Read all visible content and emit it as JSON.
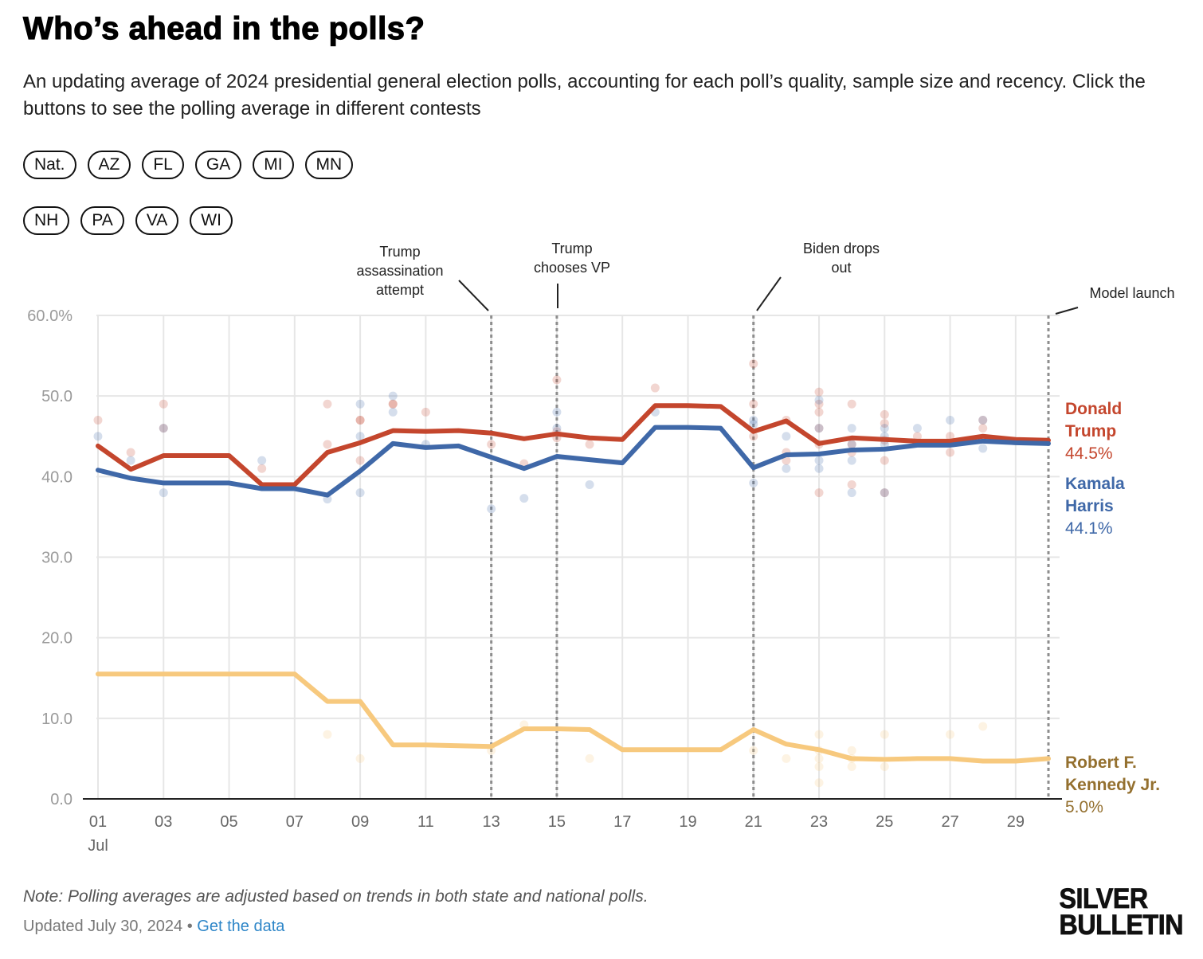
{
  "header": {
    "title": "Who’s ahead in the polls?",
    "subtitle": "An updating average of 2024 presidential general election polls, accounting for each poll’s quality, sample size and recency. Click the buttons to see the polling average in different contests"
  },
  "contest_buttons": {
    "row1": [
      "Nat.",
      "AZ",
      "FL",
      "GA",
      "MI",
      "MN"
    ],
    "row2": [
      "NH",
      "PA",
      "VA",
      "WI"
    ]
  },
  "footer": {
    "note": "Note: Polling averages are adjusted based on trends in both state and national polls.",
    "updated": "Updated July 30, 2024",
    "separator": "•",
    "data_link": "Get the data",
    "logo_line1": "SILVER",
    "logo_line2": "BULLETIN"
  },
  "chart_data": {
    "type": "line",
    "title": "Who’s ahead in the polls?",
    "xlabel": "",
    "ylabel": "",
    "x": [
      1,
      2,
      3,
      4,
      5,
      6,
      7,
      8,
      9,
      10,
      11,
      12,
      13,
      14,
      15,
      16,
      17,
      18,
      19,
      20,
      21,
      22,
      23,
      24,
      25,
      26,
      27,
      28,
      29,
      30
    ],
    "x_ticks": [
      "01",
      "03",
      "05",
      "07",
      "09",
      "11",
      "13",
      "15",
      "17",
      "19",
      "21",
      "23",
      "25",
      "27",
      "29"
    ],
    "x_tick_values": [
      1,
      3,
      5,
      7,
      9,
      11,
      13,
      15,
      17,
      19,
      21,
      23,
      25,
      27,
      29
    ],
    "x_month_label": "Jul",
    "xlim": [
      1,
      30
    ],
    "y_ticks": [
      "60.0%",
      "50.0",
      "40.0",
      "30.0",
      "20.0",
      "10.0",
      "0.0"
    ],
    "y_tick_values": [
      60,
      50,
      40,
      30,
      20,
      10,
      0
    ],
    "ylim": [
      0,
      60
    ],
    "grid": true,
    "series": [
      {
        "name": "Donald Trump",
        "label_line1": "Donald",
        "label_line2": "Trump",
        "final_label": "44.5%",
        "color": "#c4462d",
        "label_color": "#c4462d",
        "values": [
          43.8,
          40.9,
          42.6,
          42.6,
          42.6,
          39.0,
          39.0,
          43.0,
          44.2,
          45.7,
          45.6,
          45.7,
          45.4,
          44.7,
          45.3,
          44.8,
          44.6,
          48.8,
          48.8,
          48.7,
          45.6,
          46.9,
          44.1,
          44.8,
          44.6,
          44.4,
          44.4,
          45.0,
          44.6,
          44.5
        ],
        "polls": [
          [
            1,
            47
          ],
          [
            2,
            43
          ],
          [
            3,
            49
          ],
          [
            3,
            46
          ],
          [
            6,
            41
          ],
          [
            8,
            49
          ],
          [
            8,
            44
          ],
          [
            9,
            47
          ],
          [
            9,
            47
          ],
          [
            9,
            42
          ],
          [
            10,
            49
          ],
          [
            10,
            49
          ],
          [
            11,
            48
          ],
          [
            13,
            44
          ],
          [
            14,
            41.6
          ],
          [
            15,
            52
          ],
          [
            15,
            45.6
          ],
          [
            15,
            44.8
          ],
          [
            16,
            44
          ],
          [
            18,
            51
          ],
          [
            21,
            54
          ],
          [
            21,
            49
          ],
          [
            21,
            45
          ],
          [
            22,
            47
          ],
          [
            22,
            43
          ],
          [
            22,
            42
          ],
          [
            23,
            50.5
          ],
          [
            23,
            49
          ],
          [
            23,
            48
          ],
          [
            23,
            46
          ],
          [
            23,
            44
          ],
          [
            23,
            38
          ],
          [
            24,
            49
          ],
          [
            24,
            44
          ],
          [
            24,
            43
          ],
          [
            24,
            39
          ],
          [
            25,
            47.7
          ],
          [
            25,
            46.6
          ],
          [
            25,
            44.5
          ],
          [
            25,
            42
          ],
          [
            25,
            38
          ],
          [
            26,
            45
          ],
          [
            27,
            45
          ],
          [
            27,
            43
          ],
          [
            28,
            47
          ],
          [
            28,
            46
          ]
        ]
      },
      {
        "name": "Kamala Harris",
        "label_line1": "Kamala",
        "label_line2": "Harris",
        "final_label": "44.1%",
        "color": "#3f68a8",
        "label_color": "#3f68a8",
        "values": [
          40.8,
          39.8,
          39.2,
          39.2,
          39.2,
          38.5,
          38.5,
          37.7,
          40.7,
          44.1,
          43.6,
          43.8,
          42.4,
          41.0,
          42.5,
          42.1,
          41.7,
          46.1,
          46.1,
          46.0,
          41.1,
          42.7,
          42.8,
          43.3,
          43.4,
          43.9,
          43.9,
          44.4,
          44.2,
          44.1
        ],
        "polls": [
          [
            1,
            45
          ],
          [
            2,
            42
          ],
          [
            3,
            46
          ],
          [
            3,
            38
          ],
          [
            6,
            42
          ],
          [
            8,
            37.2
          ],
          [
            9,
            49
          ],
          [
            9,
            45
          ],
          [
            9,
            38
          ],
          [
            10,
            50
          ],
          [
            10,
            48
          ],
          [
            11,
            44
          ],
          [
            13,
            36
          ],
          [
            14,
            37.3
          ],
          [
            15,
            48
          ],
          [
            15,
            46
          ],
          [
            16,
            39
          ],
          [
            18,
            48
          ],
          [
            21,
            47
          ],
          [
            21,
            46.5
          ],
          [
            21,
            39.2
          ],
          [
            22,
            45
          ],
          [
            22,
            41
          ],
          [
            23,
            49.5
          ],
          [
            23,
            46
          ],
          [
            23,
            42
          ],
          [
            23,
            41
          ],
          [
            24,
            46
          ],
          [
            24,
            44
          ],
          [
            24,
            42
          ],
          [
            24,
            38
          ],
          [
            25,
            46
          ],
          [
            25,
            45
          ],
          [
            25,
            44
          ],
          [
            25,
            38
          ],
          [
            26,
            46
          ],
          [
            27,
            47
          ],
          [
            28,
            47
          ],
          [
            28,
            43.5
          ]
        ]
      },
      {
        "name": "Robert F. Kennedy Jr.",
        "label_line1": "Robert F.",
        "label_line2": "Kennedy Jr.",
        "final_label": "5.0%",
        "color": "#f7c97e",
        "label_color": "#94702f",
        "values": [
          15.5,
          15.5,
          15.5,
          15.5,
          15.5,
          15.5,
          15.5,
          12.1,
          12.1,
          6.7,
          6.7,
          6.6,
          6.5,
          8.7,
          8.7,
          8.6,
          6.1,
          6.1,
          6.1,
          6.1,
          8.6,
          6.8,
          6.1,
          5.0,
          4.9,
          5.0,
          5.0,
          4.7,
          4.7,
          5.0
        ],
        "polls": [
          [
            8,
            8
          ],
          [
            9,
            5
          ],
          [
            13,
            6
          ],
          [
            14,
            9.2
          ],
          [
            16,
            5
          ],
          [
            21,
            6
          ],
          [
            22,
            5
          ],
          [
            23,
            8
          ],
          [
            23,
            6
          ],
          [
            23,
            5
          ],
          [
            23,
            4
          ],
          [
            23,
            2
          ],
          [
            24,
            6
          ],
          [
            24,
            5
          ],
          [
            24,
            4
          ],
          [
            25,
            8
          ],
          [
            25,
            4
          ],
          [
            27,
            8
          ],
          [
            28,
            9
          ]
        ]
      }
    ],
    "annotations": [
      {
        "x": 13,
        "label_lines": [
          "Trump",
          "assassination",
          "attempt"
        ]
      },
      {
        "x": 15,
        "label_lines": [
          "Trump",
          "chooses VP"
        ]
      },
      {
        "x": 21,
        "label_lines": [
          "Biden drops",
          "out"
        ]
      },
      {
        "x": 30,
        "label_lines": [
          "Model launch"
        ]
      }
    ]
  }
}
